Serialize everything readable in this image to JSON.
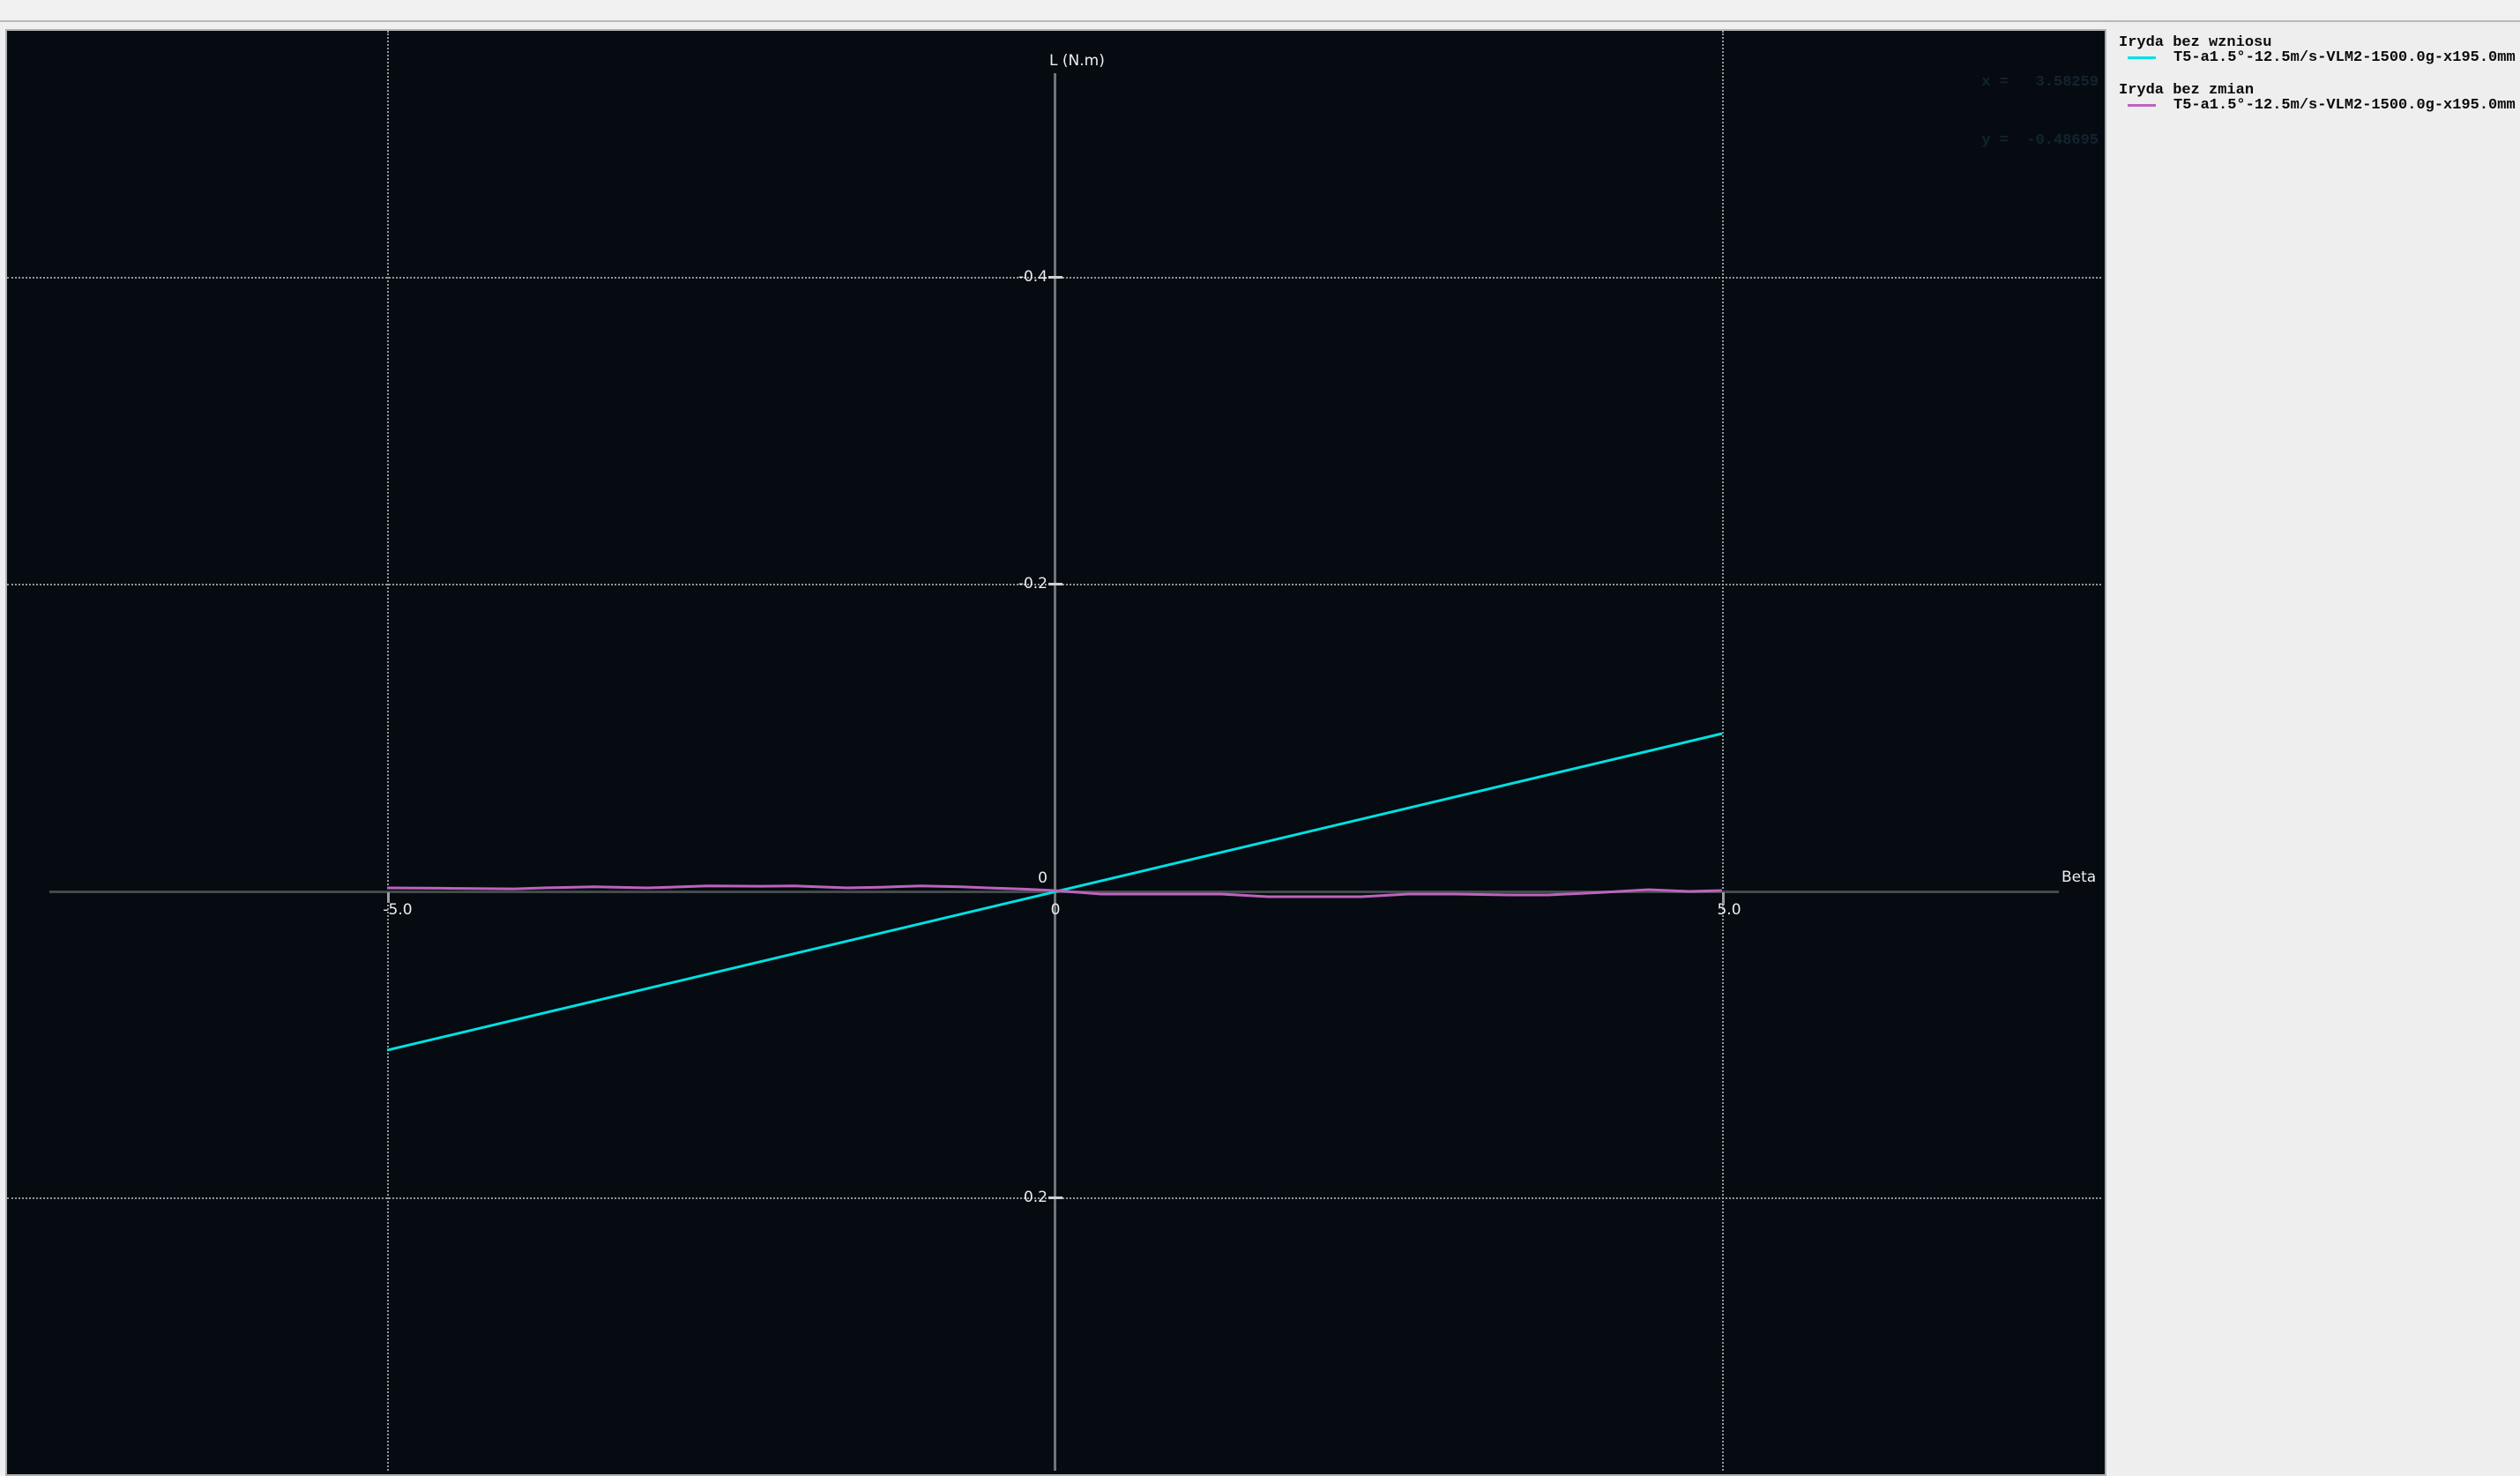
{
  "window": {
    "top_bar_text": ""
  },
  "plot": {
    "ylabel": "L (N.m)",
    "xlabel": "Beta",
    "y_ticks": [
      "-0.4",
      "-0.2",
      "0.2"
    ],
    "origin_y_label": "0",
    "origin_x_label": "0",
    "x_ticks": [
      "-5.0",
      "5.0"
    ],
    "cursor": {
      "line1": "x =   3.58259",
      "line2": "y =  -0.48695"
    },
    "background_color": "#050b11",
    "grid_color": "#b4bbc0"
  },
  "legend": {
    "items": [
      {
        "name": "Iryda bez wzniosu",
        "detail": "T5-a1.5°-12.5m/s-VLM2-1500.0g-x195.0mm",
        "color": "#00e2e2"
      },
      {
        "name": "Iryda bez zmian",
        "detail": "T5-a1.5°-12.5m/s-VLM2-1500.0g-x195.0mm",
        "color": "#bd63bd"
      }
    ]
  },
  "chart_data": {
    "type": "line",
    "title": "",
    "xlabel": "Beta",
    "ylabel": "L (N.m)",
    "x_tick_values": [
      -5.0,
      0,
      5.0
    ],
    "y_tick_values": [
      -0.4,
      -0.2,
      0,
      0.2
    ],
    "xlim": [
      -7.85,
      7.85
    ],
    "ylim": [
      -0.54,
      0.38
    ],
    "y_axis_inverted": true,
    "grid": "dotted, at labeled ticks only",
    "legend_position": "right-panel",
    "cursor_readout": {
      "x": 3.58259,
      "y": -0.48695
    },
    "series": [
      {
        "name": "Iryda bez wzniosu",
        "detail": "T5-a1.5°-12.5m/s-VLM2-1500.0g-x195.0mm",
        "color": "#00e2e2",
        "points": [
          [
            -5.0,
            0.1041
          ],
          [
            5.0,
            -0.1023
          ]
        ]
      },
      {
        "name": "Iryda bez zmian",
        "detail": "T5-a1.5°-12.5m/s-VLM2-1500.0g-x195.0mm",
        "color": "#bd63bd",
        "points": [
          [
            -5.0,
            -0.0017
          ],
          [
            -4.6,
            -0.0015
          ],
          [
            -4.05,
            -0.0011
          ],
          [
            -3.8,
            -0.0018
          ],
          [
            -3.45,
            -0.0024
          ],
          [
            -3.05,
            -0.0017
          ],
          [
            -2.6,
            -0.003
          ],
          [
            -2.2,
            -0.0028
          ],
          [
            -1.95,
            -0.003
          ],
          [
            -1.55,
            -0.0017
          ],
          [
            -1.3,
            -0.0022
          ],
          [
            -1.0,
            -0.003
          ],
          [
            -0.7,
            -0.0024
          ],
          [
            -0.5,
            -0.0017
          ],
          [
            -0.25,
            -0.001
          ],
          [
            0.0,
            0.0
          ],
          [
            0.35,
            0.0023
          ],
          [
            0.8,
            0.0023
          ],
          [
            1.25,
            0.0023
          ],
          [
            1.6,
            0.004
          ],
          [
            2.3,
            0.004
          ],
          [
            2.65,
            0.0023
          ],
          [
            3.0,
            0.0023
          ],
          [
            3.4,
            0.0029
          ],
          [
            3.7,
            0.0029
          ],
          [
            4.1,
            0.0012
          ],
          [
            4.45,
            -0.0006
          ],
          [
            4.75,
            0.0006
          ],
          [
            5.0,
            0.0
          ]
        ]
      }
    ]
  }
}
